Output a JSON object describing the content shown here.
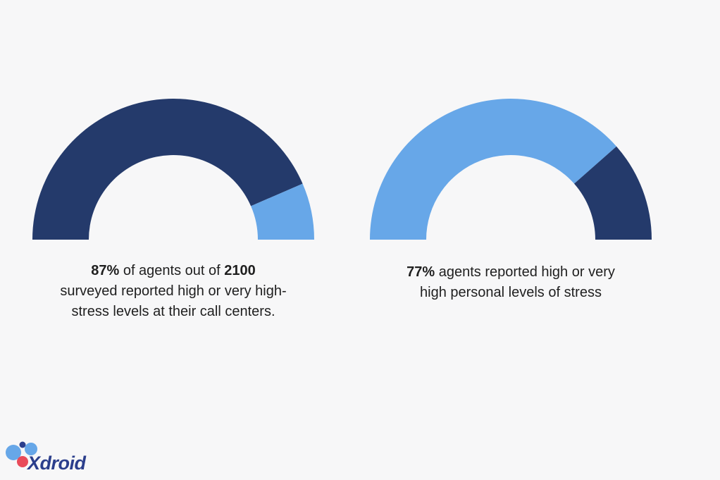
{
  "colors": {
    "dark": "#243a6b",
    "light": "#67a7e8",
    "background": "#f7f7f8",
    "logo_text": "#2b3e8c",
    "logo_red": "#e94b5a"
  },
  "chart_data": [
    {
      "type": "pie",
      "style": "semicircle-gauge",
      "values": [
        87,
        13
      ],
      "colors": [
        "#243a6b",
        "#67a7e8"
      ],
      "caption": {
        "stat": "87%",
        "text1": " of agents out of ",
        "count": "2100",
        "line2": "surveyed reported high or very high-",
        "line3": "stress levels at their call centers."
      }
    },
    {
      "type": "pie",
      "style": "semicircle-gauge",
      "values": [
        77,
        23
      ],
      "colors": [
        "#67a7e8",
        "#243a6b"
      ],
      "caption": {
        "stat": "77%",
        "text1": " agents reported high or very",
        "line2": "high personal levels of stress"
      }
    }
  ],
  "logo": {
    "text": "Xdroid"
  }
}
